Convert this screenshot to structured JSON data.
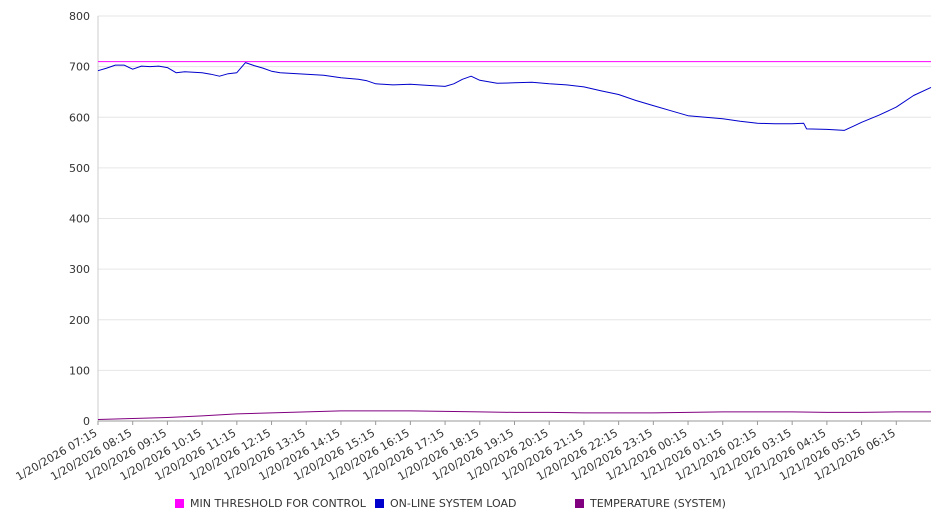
{
  "chart_data": {
    "type": "line",
    "ylim": [
      0,
      800
    ],
    "yticks": [
      0,
      100,
      200,
      300,
      400,
      500,
      600,
      700,
      800
    ],
    "grid": "horizontal",
    "legend_position": "bottom",
    "x_tick_labels": [
      "1/20/2026 07:15",
      "1/20/2026 08:15",
      "1/20/2026 09:15",
      "1/20/2026 10:15",
      "1/20/2026 11:15",
      "1/20/2026 12:15",
      "1/20/2026 13:15",
      "1/20/2026 14:15",
      "1/20/2026 15:15",
      "1/20/2026 16:15",
      "1/20/2026 17:15",
      "1/20/2026 18:15",
      "1/20/2026 19:15",
      "1/20/2026 20:15",
      "1/20/2026 21:15",
      "1/20/2026 22:15",
      "1/20/2026 23:15",
      "1/21/2026 00:15",
      "1/21/2026 01:15",
      "1/21/2026 02:15",
      "1/21/2026 03:15",
      "1/21/2026 04:15",
      "1/21/2026 05:15",
      "1/21/2026 06:15"
    ],
    "x_range": [
      "1/20/2026 07:15",
      "1/21/2026 07:15"
    ],
    "series": [
      {
        "name": "MIN THRESHOLD FOR CONTROL",
        "color": "#ff00ff",
        "points": [
          [
            "1/20/2026 07:15",
            710
          ],
          [
            "1/21/2026 07:15",
            710
          ]
        ]
      },
      {
        "name": "ON-LINE SYSTEM LOAD",
        "color": "#0000cc",
        "points": [
          [
            "1/20/2026 07:15",
            692
          ],
          [
            "1/20/2026 07:30",
            697
          ],
          [
            "1/20/2026 07:45",
            703
          ],
          [
            "1/20/2026 08:00",
            703
          ],
          [
            "1/20/2026 08:15",
            695
          ],
          [
            "1/20/2026 08:30",
            701
          ],
          [
            "1/20/2026 08:45",
            700
          ],
          [
            "1/20/2026 09:00",
            701
          ],
          [
            "1/20/2026 09:15",
            698
          ],
          [
            "1/20/2026 09:30",
            688
          ],
          [
            "1/20/2026 09:45",
            690
          ],
          [
            "1/20/2026 10:00",
            689
          ],
          [
            "1/20/2026 10:15",
            688
          ],
          [
            "1/20/2026 10:30",
            685
          ],
          [
            "1/20/2026 10:45",
            681
          ],
          [
            "1/20/2026 11:00",
            686
          ],
          [
            "1/20/2026 11:15",
            688
          ],
          [
            "1/20/2026 11:30",
            708
          ],
          [
            "1/20/2026 11:45",
            702
          ],
          [
            "1/20/2026 12:00",
            697
          ],
          [
            "1/20/2026 12:15",
            691
          ],
          [
            "1/20/2026 12:30",
            688
          ],
          [
            "1/20/2026 12:45",
            687
          ],
          [
            "1/20/2026 13:15",
            685
          ],
          [
            "1/20/2026 13:45",
            683
          ],
          [
            "1/20/2026 14:15",
            678
          ],
          [
            "1/20/2026 14:45",
            675
          ],
          [
            "1/20/2026 15:00",
            672
          ],
          [
            "1/20/2026 15:15",
            666
          ],
          [
            "1/20/2026 15:45",
            664
          ],
          [
            "1/20/2026 16:15",
            665
          ],
          [
            "1/20/2026 16:45",
            663
          ],
          [
            "1/20/2026 17:15",
            661
          ],
          [
            "1/20/2026 17:30",
            666
          ],
          [
            "1/20/2026 17:45",
            675
          ],
          [
            "1/20/2026 18:00",
            681
          ],
          [
            "1/20/2026 18:15",
            673
          ],
          [
            "1/20/2026 18:45",
            667
          ],
          [
            "1/20/2026 19:15",
            668
          ],
          [
            "1/20/2026 19:45",
            669
          ],
          [
            "1/20/2026 20:15",
            666
          ],
          [
            "1/20/2026 20:45",
            664
          ],
          [
            "1/20/2026 21:15",
            660
          ],
          [
            "1/20/2026 21:45",
            652
          ],
          [
            "1/20/2026 22:15",
            645
          ],
          [
            "1/20/2026 22:45",
            633
          ],
          [
            "1/20/2026 23:15",
            623
          ],
          [
            "1/20/2026 23:45",
            613
          ],
          [
            "1/21/2026 00:15",
            603
          ],
          [
            "1/21/2026 00:45",
            600
          ],
          [
            "1/21/2026 01:15",
            597
          ],
          [
            "1/21/2026 01:45",
            592
          ],
          [
            "1/21/2026 02:15",
            588
          ],
          [
            "1/21/2026 02:45",
            587
          ],
          [
            "1/21/2026 03:15",
            587
          ],
          [
            "1/21/2026 03:35",
            588
          ],
          [
            "1/21/2026 03:40",
            577
          ],
          [
            "1/21/2026 04:15",
            576
          ],
          [
            "1/21/2026 04:45",
            574
          ],
          [
            "1/21/2026 05:00",
            582
          ],
          [
            "1/21/2026 05:15",
            590
          ],
          [
            "1/21/2026 05:45",
            604
          ],
          [
            "1/21/2026 06:15",
            620
          ],
          [
            "1/21/2026 06:45",
            643
          ],
          [
            "1/21/2026 07:15",
            659
          ]
        ]
      },
      {
        "name": "TEMPERATURE (SYSTEM)",
        "color": "#800080",
        "points": [
          [
            "1/20/2026 07:15",
            3
          ],
          [
            "1/20/2026 08:15",
            5
          ],
          [
            "1/20/2026 09:15",
            7
          ],
          [
            "1/20/2026 10:15",
            10
          ],
          [
            "1/20/2026 11:15",
            14
          ],
          [
            "1/20/2026 12:15",
            16
          ],
          [
            "1/20/2026 13:15",
            18
          ],
          [
            "1/20/2026 14:15",
            20
          ],
          [
            "1/20/2026 15:15",
            20
          ],
          [
            "1/20/2026 16:15",
            20
          ],
          [
            "1/20/2026 17:15",
            19
          ],
          [
            "1/20/2026 18:15",
            18
          ],
          [
            "1/20/2026 19:15",
            17
          ],
          [
            "1/20/2026 20:15",
            17
          ],
          [
            "1/20/2026 21:15",
            16
          ],
          [
            "1/20/2026 22:15",
            16
          ],
          [
            "1/20/2026 23:15",
            16
          ],
          [
            "1/21/2026 00:15",
            17
          ],
          [
            "1/21/2026 01:15",
            18
          ],
          [
            "1/21/2026 02:15",
            18
          ],
          [
            "1/21/2026 03:15",
            18
          ],
          [
            "1/21/2026 04:15",
            17
          ],
          [
            "1/21/2026 05:15",
            17
          ],
          [
            "1/21/2026 06:15",
            18
          ],
          [
            "1/21/2026 07:15",
            18
          ]
        ]
      }
    ]
  }
}
